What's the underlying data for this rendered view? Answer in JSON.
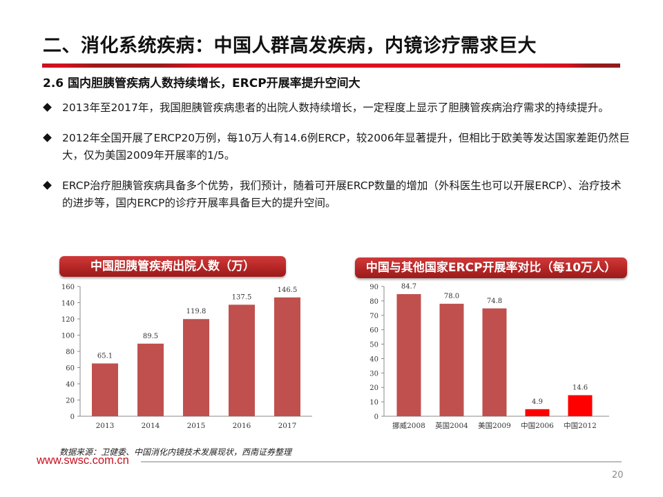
{
  "page": {
    "title": "二、消化系统疾病：中国人群高发疾病，内镜诊疗需求巨大",
    "subtitle": "2.6 国内胆胰管疾病人数持续增长，ERCP开展率提升空间大",
    "accent_color": "#c8101e",
    "bar_color": "#c0504d",
    "highlight_bar_color": "#ff0000",
    "bullets": [
      {
        "icon": "diamond-icon",
        "text": "2013年至2017年，我国胆胰管疾病患者的出院人数持续增长，一定程度上显示了胆胰管疾病治疗需求的持续提升。"
      },
      {
        "icon": "diamond-icon",
        "text": "2012年全国开展了ERCP20万例，每10万人有14.6例ERCP，较2006年显著提升，但相比于欧美等发达国家差距仍然巨大，仅为美国2009年开展率的1/5。"
      },
      {
        "icon": "diamond-icon",
        "text": "ERCP治疗胆胰管疾病具备多个优势，我们预计，随着可开展ERCP数量的增加（外科医生也可以开展ERCP）、治疗技术的进步等，国内ERCP的诊疗开展率具备巨大的提升空间。"
      }
    ],
    "source": "数据来源：卫健委、中国消化内镜技术发展现状，西南证券整理",
    "website": "www.swsc.com.cn",
    "page_number": "20"
  },
  "chart_data": [
    {
      "type": "bar",
      "title": "中国胆胰管疾病出院人数（万）",
      "categories": [
        "2013",
        "2014",
        "2015",
        "2016",
        "2017"
      ],
      "values": [
        65.1,
        89.5,
        119.8,
        137.5,
        146.5
      ],
      "value_labels": [
        "65.1",
        "89.5",
        "119.8",
        "137.5",
        "146.5"
      ],
      "xlabel": "",
      "ylabel": "",
      "ylim": [
        0,
        160
      ],
      "yticks": [
        0,
        20,
        40,
        60,
        80,
        100,
        120,
        140,
        160
      ],
      "grid": false,
      "legend": "none",
      "bar_colors": [
        "#c0504d",
        "#c0504d",
        "#c0504d",
        "#c0504d",
        "#c0504d"
      ]
    },
    {
      "type": "bar",
      "title": "中国与其他国家ERCP开展率对比（每10万人）",
      "categories": [
        "挪威2008",
        "英国2004",
        "美国2009",
        "中国2006",
        "中国2012"
      ],
      "values": [
        84.7,
        78.0,
        74.8,
        4.9,
        14.6
      ],
      "value_labels": [
        "84.7",
        "78.0",
        "74.8",
        "4.9",
        "14.6"
      ],
      "xlabel": "",
      "ylabel": "",
      "ylim": [
        0,
        90
      ],
      "yticks": [
        0,
        10,
        20,
        30,
        40,
        50,
        60,
        70,
        80,
        90
      ],
      "grid": false,
      "legend": "none",
      "bar_colors": [
        "#c0504d",
        "#c0504d",
        "#c0504d",
        "#ff0000",
        "#ff0000"
      ]
    }
  ]
}
